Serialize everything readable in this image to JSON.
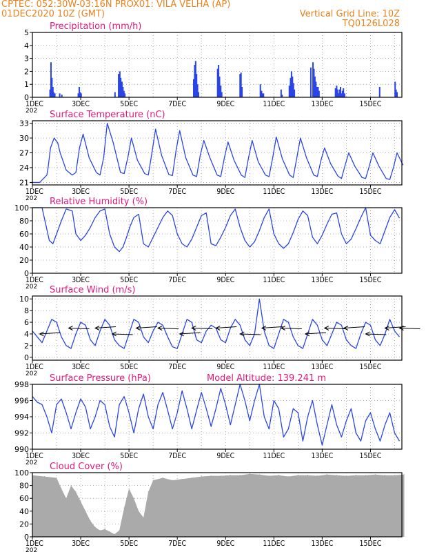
{
  "header": {
    "line1": "CPTEC:   052:30W-03:16N   PROX01: VILA VELHA (AP)",
    "date": "01DEC2020 10Z (GMT)",
    "grid_note": "Vertical Grid Line: 10Z",
    "code": "TQ0126L028"
  },
  "colors": {
    "axis": "#000000",
    "grid": "#9a9a9a",
    "series": "#2a44e6",
    "title": "#e0187a",
    "cloud": "#aaaaaa",
    "header": "#e8821e"
  },
  "x_ticks": [
    "1DEC",
    "3DEC",
    "5DEC",
    "7DEC",
    "9DEC",
    "11DEC",
    "13DEC",
    "15DEC"
  ],
  "year_stub": "202",
  "chart_data": [
    {
      "id": "precip",
      "type": "bar",
      "title": "Precipitation (mm/h)",
      "ylim": [
        0,
        5
      ],
      "yticks": [
        0,
        1,
        2,
        3,
        4,
        5
      ],
      "x_days": [
        0.73,
        0.77,
        0.81,
        0.85,
        0.88,
        0.93,
        1.13,
        1.22,
        1.9,
        1.94,
        1.98,
        2.02,
        3.42,
        3.57,
        3.62,
        3.66,
        3.71,
        3.75,
        3.79,
        3.83,
        6.68,
        6.72,
        6.76,
        6.8,
        6.84,
        6.88,
        7.67,
        7.71,
        7.75,
        7.8,
        7.84,
        8.6,
        8.64,
        8.68,
        9.44,
        9.49,
        9.53,
        9.57,
        10.3,
        10.34,
        10.64,
        10.69,
        10.73,
        10.77,
        10.81,
        10.85,
        11.53,
        11.62,
        11.66,
        11.7,
        11.74,
        11.78,
        11.83,
        11.87,
        12.55,
        12.6,
        12.64,
        12.68,
        12.72,
        12.76,
        12.8,
        12.84,
        12.88,
        12.93,
        14.38,
        15.02,
        15.06,
        15.1
      ],
      "values": [
        0.6,
        2.7,
        1.5,
        0.8,
        0.4,
        0.3,
        0.3,
        0.2,
        0.3,
        0.8,
        0.4,
        0.3,
        0.4,
        1.8,
        2.0,
        1.5,
        1.2,
        0.8,
        0.5,
        0.3,
        1.4,
        2.5,
        2.8,
        1.8,
        1.0,
        0.4,
        2.2,
        2.5,
        1.6,
        0.9,
        0.4,
        1.8,
        1.9,
        0.8,
        1.0,
        0.5,
        0.3,
        0.3,
        0.6,
        0.2,
        0.9,
        1.5,
        2.0,
        1.6,
        1.1,
        0.6,
        2.3,
        2.7,
        2.2,
        1.6,
        1.2,
        0.8,
        0.8,
        0.5,
        0.7,
        0.9,
        0.6,
        0.3,
        0.6,
        0.8,
        0.3,
        0.5,
        0.7,
        0.3,
        0.8,
        1.2,
        0.6,
        0.4
      ]
    },
    {
      "id": "temp",
      "type": "line",
      "title": "Surface Temperature (nC)",
      "ylim": [
        20.5,
        33.5
      ],
      "yticks": [
        21,
        24,
        27,
        30,
        33
      ],
      "x_days": [
        0,
        0.3,
        0.5,
        0.6,
        0.65,
        0.75,
        0.9,
        1.05,
        1.15,
        1.4,
        1.65,
        1.8,
        1.95,
        2.1,
        2.35,
        2.65,
        2.8,
        2.95,
        3.1,
        3.35,
        3.65,
        3.8,
        3.95,
        4.1,
        4.35,
        4.65,
        4.8,
        4.95,
        5.1,
        5.35,
        5.65,
        5.8,
        5.95,
        6.1,
        6.35,
        6.65,
        6.8,
        6.95,
        7.1,
        7.35,
        7.65,
        7.8,
        7.95,
        8.1,
        8.35,
        8.65,
        8.8,
        8.95,
        9.1,
        9.35,
        9.65,
        9.8,
        9.95,
        10.1,
        10.35,
        10.65,
        10.8,
        10.95,
        11.1,
        11.35,
        11.65,
        11.8,
        11.95,
        12.1,
        12.35,
        12.65,
        12.8,
        12.95,
        13.1,
        13.35,
        13.65,
        13.8,
        13.95,
        14.1,
        14.35,
        14.65,
        14.8,
        14.95,
        15.1,
        15.35
      ],
      "values": [
        21,
        21,
        22,
        22.5,
        24,
        28,
        30,
        29,
        27,
        23.5,
        22.5,
        23,
        28,
        30.8,
        26,
        23,
        22.5,
        26,
        33,
        29,
        23,
        22.8,
        26,
        30,
        25.5,
        22.8,
        22.5,
        27,
        31.8,
        26.5,
        22.6,
        22.4,
        27.5,
        31.5,
        26,
        22.5,
        22.2,
        26.5,
        29.5,
        26,
        22.5,
        22.2,
        26,
        29.2,
        25.5,
        22.5,
        22,
        26,
        29.5,
        25.2,
        22.5,
        22.2,
        26,
        30.2,
        25.8,
        22.5,
        22,
        26,
        30,
        26,
        22.5,
        22.2,
        25.5,
        28,
        24.8,
        22.3,
        21.8,
        24.5,
        27,
        24.3,
        22,
        21.8,
        24.3,
        27,
        24.3,
        21.8,
        21.6,
        24,
        27,
        24.5
      ]
    },
    {
      "id": "rh",
      "type": "line",
      "title": "Relative Humidity (%)",
      "ylim": [
        0,
        100
      ],
      "yticks": [
        0,
        20,
        40,
        60,
        80,
        100
      ],
      "x_days": [
        0,
        0.2,
        0.4,
        0.55,
        0.7,
        0.85,
        1.0,
        1.2,
        1.4,
        1.65,
        1.8,
        2.0,
        2.2,
        2.4,
        2.6,
        2.8,
        3.0,
        3.2,
        3.4,
        3.6,
        3.75,
        3.9,
        4.05,
        4.2,
        4.4,
        4.6,
        4.8,
        5.0,
        5.2,
        5.4,
        5.6,
        5.8,
        6.0,
        6.2,
        6.4,
        6.6,
        6.8,
        7.0,
        7.2,
        7.4,
        7.6,
        7.8,
        8.0,
        8.2,
        8.4,
        8.6,
        8.8,
        9.0,
        9.2,
        9.4,
        9.6,
        9.8,
        10.0,
        10.2,
        10.4,
        10.6,
        10.8,
        11.0,
        11.2,
        11.4,
        11.6,
        11.8,
        12.0,
        12.2,
        12.4,
        12.6,
        12.8,
        13.0,
        13.2,
        13.4,
        13.6,
        13.8,
        14.0,
        14.2,
        14.4,
        14.6,
        14.8,
        15.0,
        15.2
      ],
      "values": [
        100,
        100,
        100,
        75,
        50,
        45,
        60,
        80,
        98,
        95,
        60,
        50,
        58,
        70,
        85,
        95,
        98,
        60,
        40,
        33,
        40,
        55,
        72,
        85,
        90,
        45,
        40,
        55,
        70,
        85,
        95,
        88,
        60,
        45,
        40,
        52,
        70,
        88,
        92,
        45,
        42,
        55,
        70,
        88,
        98,
        70,
        50,
        40,
        48,
        65,
        85,
        98,
        60,
        45,
        38,
        45,
        62,
        82,
        95,
        88,
        55,
        45,
        58,
        75,
        90,
        92,
        60,
        45,
        52,
        68,
        85,
        100,
        58,
        50,
        45,
        65,
        85,
        97,
        84
      ]
    },
    {
      "id": "wind",
      "type": "line",
      "title": "Surface Wind (m/s)",
      "ylim": [
        -0.5,
        10.5
      ],
      "yticks": [
        0,
        2,
        4,
        6,
        8,
        10
      ],
      "x_days": [
        0,
        0.2,
        0.4,
        0.6,
        0.8,
        1.0,
        1.2,
        1.4,
        1.6,
        1.8,
        2.0,
        2.2,
        2.4,
        2.6,
        2.8,
        3.0,
        3.2,
        3.4,
        3.6,
        3.8,
        4.0,
        4.2,
        4.4,
        4.6,
        4.8,
        5.0,
        5.2,
        5.4,
        5.6,
        5.8,
        6.0,
        6.2,
        6.4,
        6.6,
        6.8,
        7.0,
        7.2,
        7.4,
        7.6,
        7.8,
        8.0,
        8.2,
        8.4,
        8.6,
        8.8,
        9.0,
        9.2,
        9.4,
        9.6,
        9.8,
        10.0,
        10.2,
        10.4,
        10.6,
        10.8,
        11.0,
        11.2,
        11.4,
        11.6,
        11.8,
        12.0,
        12.2,
        12.4,
        12.6,
        12.8,
        13.0,
        13.2,
        13.4,
        13.6,
        13.8,
        14.0,
        14.2,
        14.4,
        14.6,
        14.8,
        15.0,
        15.2
      ],
      "values": [
        4.5,
        3.5,
        2.5,
        4.5,
        6.5,
        6.0,
        3.5,
        2.0,
        1.5,
        4.0,
        6.0,
        5.5,
        3.0,
        2.0,
        4.5,
        6.5,
        5.5,
        3.0,
        2.0,
        1.5,
        4.0,
        6.5,
        6.0,
        3.5,
        2.5,
        4.5,
        6.0,
        5.5,
        3.5,
        1.8,
        1.5,
        4.0,
        6.5,
        6.0,
        3.0,
        2.5,
        4.5,
        5.5,
        5.0,
        3.0,
        2.5,
        5.0,
        6.5,
        5.5,
        3.0,
        2.0,
        4.0,
        10.0,
        4.5,
        2.0,
        1.5,
        4.0,
        6.5,
        6.0,
        3.5,
        2.0,
        1.5,
        4.0,
        6.5,
        5.5,
        3.0,
        2.0,
        4.0,
        6.0,
        5.5,
        3.0,
        2.0,
        1.5,
        4.0,
        6.0,
        5.5,
        3.0,
        2.0,
        4.0,
        6.5,
        4.5,
        3.5
      ]
    },
    {
      "id": "pressure",
      "type": "line",
      "title": "Surface Pressure (hPa)",
      "annotation": "Model Altitude: 139.241 m",
      "ylim": [
        990,
        998
      ],
      "yticks": [
        990,
        992,
        994,
        996,
        998
      ],
      "x_days": [
        0,
        0.2,
        0.4,
        0.6,
        0.8,
        1.0,
        1.2,
        1.4,
        1.6,
        1.8,
        2.0,
        2.2,
        2.4,
        2.6,
        2.8,
        3.0,
        3.2,
        3.4,
        3.6,
        3.8,
        4.0,
        4.2,
        4.4,
        4.6,
        4.8,
        5.0,
        5.2,
        5.4,
        5.6,
        5.8,
        6.0,
        6.2,
        6.4,
        6.6,
        6.8,
        7.0,
        7.2,
        7.4,
        7.6,
        7.8,
        8.0,
        8.2,
        8.4,
        8.6,
        8.8,
        9.0,
        9.2,
        9.4,
        9.6,
        9.8,
        10.0,
        10.2,
        10.4,
        10.6,
        10.8,
        11.0,
        11.2,
        11.4,
        11.6,
        11.8,
        12.0,
        12.2,
        12.4,
        12.6,
        12.8,
        13.0,
        13.2,
        13.4,
        13.6,
        13.8,
        14.0,
        14.2,
        14.4,
        14.6,
        14.8,
        15.0,
        15.2
      ],
      "values": [
        996.5,
        995.8,
        995.5,
        994.0,
        992.0,
        995.5,
        996.2,
        994.5,
        992.5,
        994.5,
        996.2,
        995.2,
        992.5,
        994.0,
        996.0,
        995.5,
        992.8,
        991.5,
        995.5,
        996.5,
        994.5,
        992.0,
        995.0,
        996.8,
        994.0,
        992.5,
        995.5,
        997.0,
        994.8,
        992.5,
        994.5,
        997.2,
        995.0,
        992.5,
        994.8,
        997.0,
        995.0,
        992.8,
        995.0,
        997.5,
        995.5,
        993.0,
        995.5,
        998.0,
        996.0,
        993.5,
        996.0,
        998.0,
        994.0,
        992.5,
        996.0,
        995.0,
        991.5,
        992.5,
        995.0,
        994.5,
        991.0,
        994.0,
        996.0,
        993.0,
        990.5,
        993.0,
        995.5,
        993.0,
        991.5,
        993.5,
        995.0,
        992.0,
        991.0,
        993.5,
        994.5,
        992.5,
        991.0,
        993.0,
        994.5,
        992.0,
        991.0
      ]
    },
    {
      "id": "cloud",
      "type": "area",
      "title": "Cloud Cover (%)",
      "ylim": [
        0,
        100
      ],
      "yticks": [
        0,
        20,
        40,
        60,
        80,
        100
      ],
      "x_days": [
        0,
        0.5,
        1.0,
        1.2,
        1.4,
        1.6,
        1.8,
        2.0,
        2.2,
        2.4,
        2.6,
        2.8,
        3.0,
        3.2,
        3.4,
        3.6,
        3.8,
        4.0,
        4.2,
        4.4,
        4.6,
        4.8,
        5.0,
        5.4,
        5.8,
        6.2,
        6.6,
        7.0,
        7.4,
        7.8,
        8.2,
        8.6,
        9.0,
        9.4,
        9.8,
        10.2,
        10.6,
        11.0,
        11.4,
        11.8,
        12.2,
        12.6,
        13.0,
        13.4,
        13.8,
        14.2,
        14.6,
        15.0,
        15.4
      ],
      "values": [
        96,
        94,
        92,
        75,
        60,
        80,
        70,
        55,
        40,
        25,
        15,
        10,
        12,
        8,
        4,
        10,
        45,
        75,
        60,
        40,
        30,
        70,
        88,
        92,
        88,
        90,
        92,
        94,
        95,
        95,
        96,
        96,
        98,
        97,
        95,
        96,
        94,
        96,
        96,
        95,
        97,
        96,
        95,
        96,
        96,
        97,
        96,
        96,
        97
      ]
    }
  ]
}
